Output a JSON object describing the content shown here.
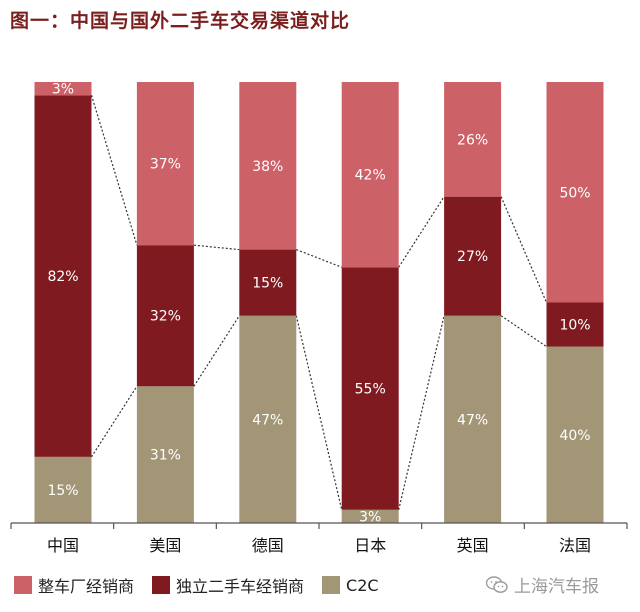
{
  "title": "图一：中国与国外二手车交易渠道对比",
  "watermark": {
    "text": "上海汽车报",
    "icon": "wechat-icon"
  },
  "chart_data": {
    "type": "bar",
    "stacked": true,
    "normalized": true,
    "categories": [
      "中国",
      "美国",
      "德国",
      "日本",
      "英国",
      "法国"
    ],
    "series": [
      {
        "name": "C2C",
        "color": "#a39677",
        "values": [
          15,
          31,
          47,
          3,
          47,
          40
        ]
      },
      {
        "name": "独立二手车经销商",
        "color": "#7f1a21",
        "values": [
          82,
          32,
          15,
          55,
          27,
          10
        ]
      },
      {
        "name": "整车厂经销商",
        "color": "#cd6168",
        "values": [
          3,
          37,
          38,
          42,
          26,
          50
        ]
      }
    ],
    "data_labels": [
      [
        "15%",
        "31%",
        "47%",
        "3%",
        "47%",
        "40%"
      ],
      [
        "82%",
        "32%",
        "15%",
        "55%",
        "27%",
        "10%"
      ],
      [
        "3%",
        "37%",
        "38%",
        "42%",
        "26%",
        "50%"
      ]
    ],
    "legend": {
      "placement": "bottom-left",
      "entries": [
        "整车厂经销商",
        "独立二手车经销商",
        "C2C"
      ]
    },
    "connector_lines": "dotted",
    "ylim": [
      0,
      100
    ],
    "grid": false
  }
}
